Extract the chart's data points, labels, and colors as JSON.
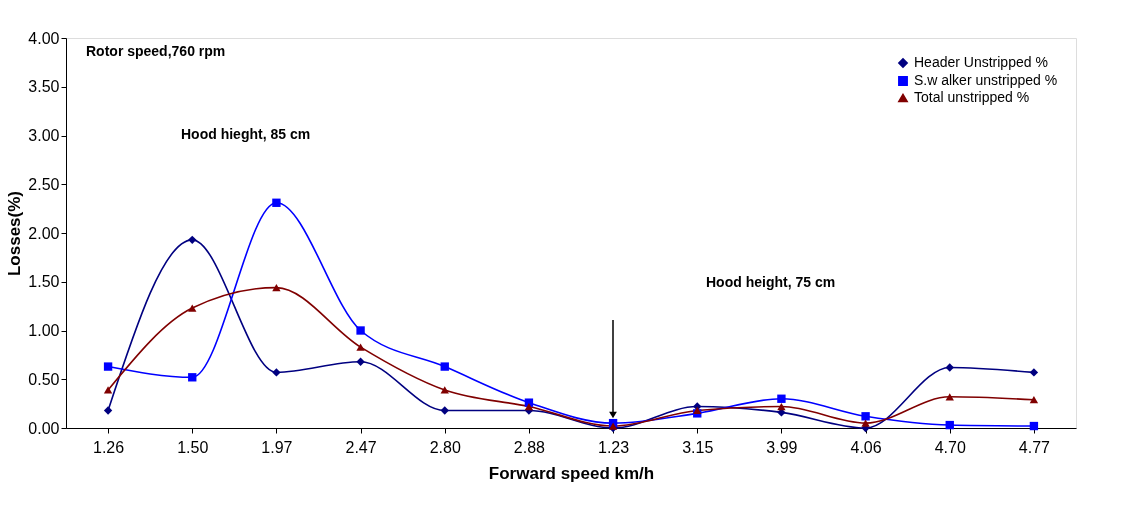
{
  "chart_data": {
    "type": "line",
    "xlabel": "Forward speed km/h",
    "ylabel": "Losses(%)",
    "categories": [
      "1.26",
      "1.50",
      "1.97",
      "2.47",
      "2.80",
      "2.88",
      "1.23",
      "3.15",
      "3.99",
      "4.06",
      "4.70",
      "4.77"
    ],
    "series": [
      {
        "name": "Header Unstripped %",
        "color": "#000080",
        "marker": "diamond",
        "values": [
          0.18,
          1.93,
          0.57,
          0.68,
          0.18,
          0.18,
          0.0,
          0.22,
          0.16,
          0.0,
          0.62,
          0.57
        ]
      },
      {
        "name": "S.w alker unstripped %",
        "color": "#0000ff",
        "marker": "square",
        "values": [
          0.63,
          0.52,
          2.31,
          1.0,
          0.63,
          0.26,
          0.05,
          0.15,
          0.3,
          0.12,
          0.03,
          0.02
        ]
      },
      {
        "name": "Total unstripped %",
        "color": "#800000",
        "marker": "triangle",
        "values": [
          0.39,
          1.23,
          1.44,
          0.83,
          0.39,
          0.22,
          0.02,
          0.18,
          0.22,
          0.05,
          0.32,
          0.29
        ]
      }
    ],
    "ylim": [
      0,
      4
    ],
    "yticks": [
      {
        "value": 0,
        "label": "0.00"
      },
      {
        "value": 0.5,
        "label": "0.50"
      },
      {
        "value": 1,
        "label": "1.00"
      },
      {
        "value": 1.5,
        "label": "1.50"
      },
      {
        "value": 2,
        "label": "2.00"
      },
      {
        "value": 2.5,
        "label": "2.50"
      },
      {
        "value": 3,
        "label": "3.00"
      },
      {
        "value": 3.5,
        "label": "3.50"
      },
      {
        "value": 4,
        "label": "4.00"
      }
    ],
    "annotations": [
      "Rotor speed,760 rpm",
      "Hood hieght, 85 cm",
      "Hood height, 75 cm"
    ],
    "legend": "top right",
    "grid": false,
    "line_style": "solid"
  }
}
